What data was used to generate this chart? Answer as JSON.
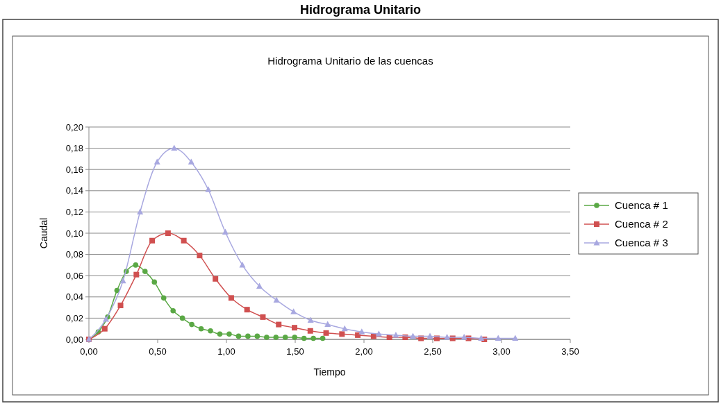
{
  "chart_data": {
    "type": "line",
    "title": "Hidrograma Unitario",
    "subtitle": "Hidrograma Unitario de las cuencas",
    "xlabel": "Tiempo",
    "ylabel": "Caudal",
    "xlim": [
      0,
      3.5
    ],
    "xticks": [
      {
        "value": 0,
        "label": "0,00"
      },
      {
        "value": 0.5,
        "label": "0,50"
      },
      {
        "value": 1,
        "label": "1,00"
      },
      {
        "value": 1.5,
        "label": "1,50"
      },
      {
        "value": 2,
        "label": "2,00"
      },
      {
        "value": 2.5,
        "label": "2,50"
      },
      {
        "value": 3,
        "label": "3,00"
      },
      {
        "value": 3.5,
        "label": "3,50"
      }
    ],
    "ylim": [
      0,
      0.2
    ],
    "yticks": [
      {
        "value": 0,
        "label": "0,00"
      },
      {
        "value": 0.02,
        "label": "0,02"
      },
      {
        "value": 0.04,
        "label": "0,04"
      },
      {
        "value": 0.06,
        "label": "0,06"
      },
      {
        "value": 0.08,
        "label": "0,08"
      },
      {
        "value": 0.1,
        "label": "0,10"
      },
      {
        "value": 0.12,
        "label": "0,12"
      },
      {
        "value": 0.14,
        "label": "0,14"
      },
      {
        "value": 0.16,
        "label": "0,16"
      },
      {
        "value": 0.18,
        "label": "0,18"
      },
      {
        "value": 0.2,
        "label": "0,20"
      }
    ],
    "grid": "y",
    "legend": "right",
    "series": [
      {
        "name": "Cuenca # 1",
        "color": "#5aa845",
        "marker": "circle",
        "x": [
          0,
          0.068,
          0.136,
          0.204,
          0.272,
          0.34,
          0.408,
          0.476,
          0.544,
          0.612,
          0.68,
          0.748,
          0.816,
          0.884,
          0.952,
          1.02,
          1.088,
          1.156,
          1.224,
          1.292,
          1.36,
          1.428,
          1.496,
          1.564,
          1.632,
          1.7
        ],
        "values": [
          0,
          0.007,
          0.021,
          0.046,
          0.064,
          0.07,
          0.064,
          0.054,
          0.039,
          0.027,
          0.02,
          0.014,
          0.01,
          0.008,
          0.005,
          0.005,
          0.003,
          0.003,
          0.003,
          0.002,
          0.002,
          0.002,
          0.002,
          0.001,
          0.001,
          0.001
        ]
      },
      {
        "name": "Cuenca # 2",
        "color": "#d05050",
        "marker": "square",
        "x": [
          0,
          0.115,
          0.23,
          0.345,
          0.46,
          0.575,
          0.69,
          0.805,
          0.92,
          1.035,
          1.15,
          1.265,
          1.38,
          1.495,
          1.61,
          1.725,
          1.84,
          1.955,
          2.07,
          2.185,
          2.3,
          2.415,
          2.53,
          2.645,
          2.76,
          2.875
        ],
        "values": [
          0,
          0.01,
          0.032,
          0.061,
          0.093,
          0.1,
          0.093,
          0.079,
          0.057,
          0.039,
          0.028,
          0.021,
          0.014,
          0.011,
          0.008,
          0.006,
          0.005,
          0.004,
          0.003,
          0.002,
          0.002,
          0.001,
          0.001,
          0.001,
          0.001,
          0
        ]
      },
      {
        "name": "Cuenca # 3",
        "color": "#a8a8e0",
        "marker": "triangle",
        "x": [
          0,
          0.124,
          0.248,
          0.372,
          0.496,
          0.62,
          0.744,
          0.868,
          0.992,
          1.116,
          1.24,
          1.364,
          1.488,
          1.612,
          1.736,
          1.86,
          1.984,
          2.108,
          2.232,
          2.356,
          2.48,
          2.604,
          2.728,
          2.852,
          2.976,
          3.1
        ],
        "values": [
          0,
          0.019,
          0.055,
          0.12,
          0.167,
          0.18,
          0.167,
          0.141,
          0.101,
          0.07,
          0.05,
          0.037,
          0.026,
          0.018,
          0.014,
          0.01,
          0.007,
          0.005,
          0.004,
          0.003,
          0.003,
          0.002,
          0.002,
          0.001,
          0.001,
          0.001
        ]
      }
    ]
  }
}
